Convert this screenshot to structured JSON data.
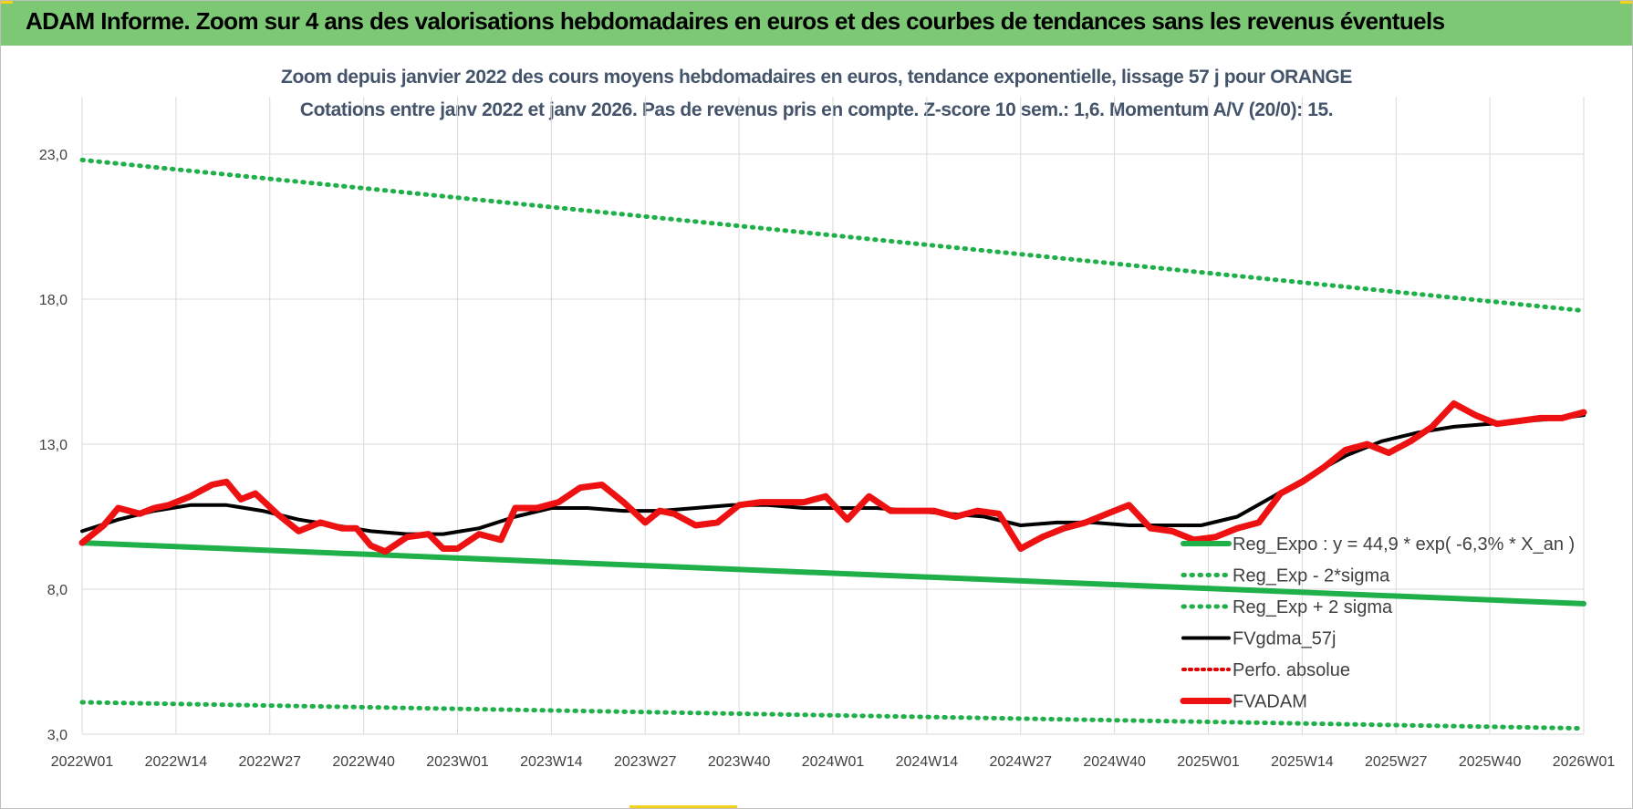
{
  "header": {
    "title": "ADAM Informe. Zoom sur 4 ans des valorisations hebdomadaires en euros et des courbes de tendances sans les revenus éventuels"
  },
  "chart_data": {
    "type": "line",
    "title": "Zoom depuis janvier 2022 des cours moyens hebdomadaires en euros, tendance exponentielle, lissage 57 j pour ORANGE",
    "subtitle": "Cotations entre janv 2022 et janv 2026. Pas de revenus pris en compte. Z-score 10 sem.: 1,6. Momentum A/V (20/0): 15.",
    "xlabel": "",
    "ylabel": "",
    "x_ticks": [
      "2022W01",
      "2022W14",
      "2022W27",
      "2022W40",
      "2023W01",
      "2023W14",
      "2023W27",
      "2023W40",
      "2024W01",
      "2024W14",
      "2024W27",
      "2024W40",
      "2025W01",
      "2025W14",
      "2025W27",
      "2025W40",
      "2026W01"
    ],
    "y_ticks": [
      "3,0",
      "8,0",
      "13,0",
      "18,0",
      "23,0"
    ],
    "ylim": [
      3,
      23
    ],
    "x_range": [
      0,
      208
    ],
    "colors": {
      "regression": "#1fb04a",
      "bands": "#1fb04a",
      "perfo": "#e00000",
      "smooth": "#000000",
      "price": "#ee1111"
    },
    "series": [
      {
        "name": "Reg_Expo : y = 44,9 * exp( -6,3% *  X_an )",
        "style": "solid-green",
        "x": [
          0,
          208
        ],
        "values": [
          9.6,
          7.5
        ]
      },
      {
        "name": "Reg_Exp - 2*sigma",
        "style": "dotted-green",
        "x": [
          0,
          208
        ],
        "values": [
          4.1,
          3.2
        ]
      },
      {
        "name": "Reg_Exp + 2 sigma",
        "style": "dotted-green",
        "x": [
          0,
          208
        ],
        "values": [
          22.8,
          17.6
        ]
      },
      {
        "name": "FVgdma_57j",
        "style": "solid-black",
        "x": [
          0,
          5,
          10,
          15,
          20,
          25,
          30,
          35,
          40,
          45,
          50,
          55,
          60,
          65,
          70,
          75,
          80,
          85,
          90,
          95,
          100,
          105,
          110,
          115,
          120,
          125,
          130,
          135,
          140,
          145,
          150,
          155,
          160,
          165,
          170,
          175,
          180,
          185,
          190,
          195,
          200,
          205,
          208
        ],
        "values": [
          10.0,
          10.4,
          10.7,
          10.9,
          10.9,
          10.7,
          10.4,
          10.2,
          10.0,
          9.9,
          9.9,
          10.1,
          10.5,
          10.8,
          10.8,
          10.7,
          10.7,
          10.8,
          10.9,
          10.9,
          10.8,
          10.8,
          10.8,
          10.7,
          10.6,
          10.5,
          10.2,
          10.3,
          10.3,
          10.2,
          10.2,
          10.2,
          10.5,
          11.2,
          11.9,
          12.6,
          13.1,
          13.4,
          13.6,
          13.7,
          13.8,
          13.9,
          14.0
        ]
      },
      {
        "name": "Perfo. absolue",
        "style": "dotted-red",
        "x": [],
        "values": []
      },
      {
        "name": "FVADAM",
        "style": "thick-red",
        "x": [
          0,
          3,
          5,
          8,
          10,
          12,
          15,
          18,
          20,
          22,
          24,
          27,
          30,
          33,
          36,
          38,
          40,
          42,
          45,
          48,
          50,
          52,
          55,
          58,
          60,
          63,
          66,
          69,
          72,
          75,
          78,
          80,
          82,
          85,
          88,
          91,
          94,
          97,
          100,
          103,
          106,
          109,
          112,
          115,
          118,
          121,
          124,
          127,
          130,
          133,
          136,
          139,
          142,
          145,
          148,
          151,
          154,
          157,
          160,
          163,
          166,
          169,
          172,
          175,
          178,
          181,
          184,
          187,
          190,
          193,
          196,
          199,
          202,
          205,
          208
        ],
        "values": [
          9.6,
          10.2,
          10.8,
          10.6,
          10.8,
          10.9,
          11.2,
          11.6,
          11.7,
          11.1,
          11.3,
          10.6,
          10.0,
          10.3,
          10.1,
          10.1,
          9.5,
          9.3,
          9.8,
          9.9,
          9.4,
          9.4,
          9.9,
          9.7,
          10.8,
          10.8,
          11.0,
          11.5,
          11.6,
          11.0,
          10.3,
          10.7,
          10.6,
          10.2,
          10.3,
          10.9,
          11.0,
          11.0,
          11.0,
          11.2,
          10.4,
          11.2,
          10.7,
          10.7,
          10.7,
          10.5,
          10.7,
          10.6,
          9.4,
          9.8,
          10.1,
          10.3,
          10.6,
          10.9,
          10.1,
          10.0,
          9.7,
          9.8,
          10.1,
          10.3,
          11.3,
          11.7,
          12.2,
          12.8,
          13.0,
          12.7,
          13.1,
          13.6,
          14.4,
          14.0,
          13.7,
          13.8,
          13.9,
          13.9,
          14.1
        ]
      }
    ]
  }
}
